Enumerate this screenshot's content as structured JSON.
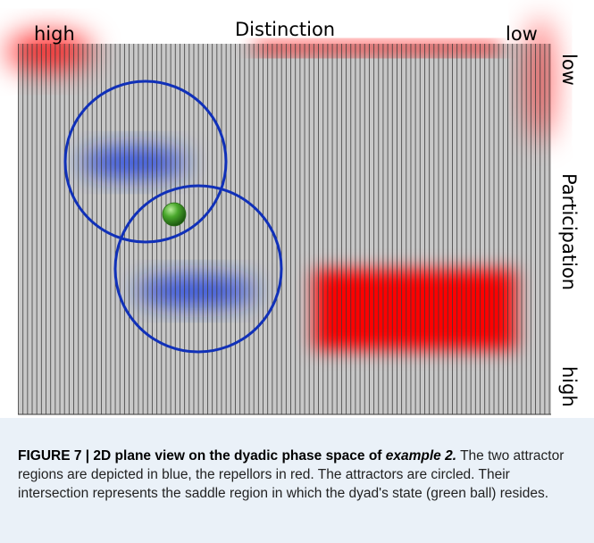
{
  "figure": {
    "axis_top_label": "Distinction",
    "top_left_label": "high",
    "top_right_label": "low",
    "axis_right_label": "Participation",
    "right_top_label": "low",
    "right_bottom_label": "high",
    "colors": {
      "grid_background": "#c8c8c8",
      "grid_lines": "#3a3a3a",
      "attractor": "#1f3fe0",
      "repellor": "#ff0000",
      "circle": "#1030b8",
      "ball": "#3a9a22"
    },
    "elements": [
      {
        "kind": "attractor",
        "name": "attractor-region-upper"
      },
      {
        "kind": "attractor",
        "name": "attractor-region-lower"
      },
      {
        "kind": "repellor",
        "name": "repellor-region-top-left"
      },
      {
        "kind": "repellor",
        "name": "repellor-region-top-center"
      },
      {
        "kind": "repellor",
        "name": "repellor-region-top-right"
      },
      {
        "kind": "repellor",
        "name": "repellor-region-lower-right"
      },
      {
        "kind": "circle",
        "name": "attractor-circle-upper"
      },
      {
        "kind": "circle",
        "name": "attractor-circle-lower"
      },
      {
        "kind": "ball",
        "name": "dyad-state-ball"
      }
    ]
  },
  "caption": {
    "label": "FIGURE 7 | 2D plane view on the dyadic phase space of ",
    "label_italic": "example 2.",
    "text": "The two attractor regions are depicted in blue, the repellors in red. The attractors are circled. Their intersection represents the saddle region in which the dyad's state (green ball) resides."
  }
}
